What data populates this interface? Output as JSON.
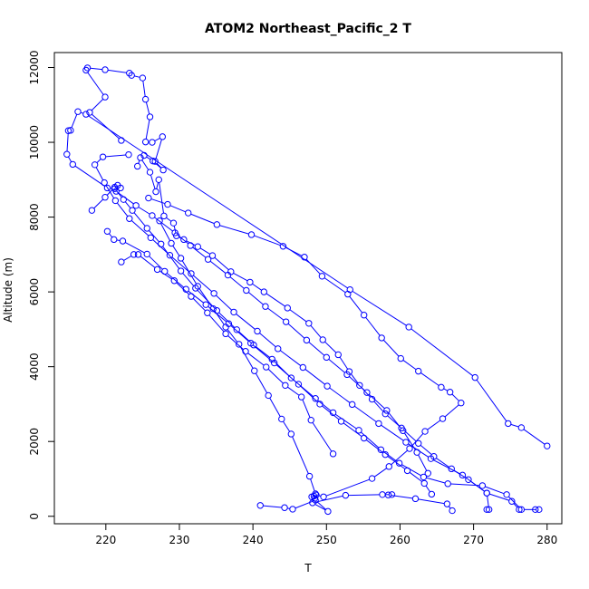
{
  "chart_data": {
    "type": "scatter",
    "title": "ATOM2 Northeast_Pacific_2 T",
    "xlabel": "T",
    "ylabel": "Altitude (m)",
    "xlim": [
      213,
      282
    ],
    "ylim": [
      -200,
      12400
    ],
    "x_ticks": [
      220,
      230,
      240,
      250,
      260,
      270,
      280
    ],
    "y_ticks": [
      0,
      2000,
      4000,
      6000,
      8000,
      10000,
      12000
    ],
    "grid": false,
    "legend": "none",
    "color": "#0000ff",
    "series": [
      {
        "points": [
          [
            280,
            1880
          ],
          [
            276.5,
            2370
          ],
          [
            274.7,
            2480
          ],
          [
            270.2,
            3710
          ],
          [
            261.2,
            5060
          ],
          [
            253.2,
            6060
          ],
          [
            217.3,
            10750
          ],
          [
            216.2,
            10820
          ],
          [
            215.2,
            10320
          ],
          [
            214.9,
            10310
          ],
          [
            214.7,
            9680
          ],
          [
            215.5,
            9410
          ],
          [
            220.2,
            8780
          ],
          [
            221.2,
            8760
          ],
          [
            222.4,
            8470
          ],
          [
            223.6,
            8180
          ],
          [
            225.6,
            7700
          ],
          [
            227.5,
            7280
          ],
          [
            230.2,
            6560
          ],
          [
            232.2,
            6100
          ],
          [
            235.1,
            5500
          ],
          [
            237.8,
            4990
          ],
          [
            240.1,
            4580
          ],
          [
            242.6,
            4200
          ],
          [
            245.2,
            3700
          ],
          [
            248.5,
            3150
          ],
          [
            250.9,
            2770
          ],
          [
            254.4,
            2300
          ],
          [
            257.4,
            1780
          ],
          [
            259.9,
            1420
          ],
          [
            263.2,
            1050
          ],
          [
            266.5,
            870
          ],
          [
            271.2,
            820
          ],
          [
            274.5,
            580
          ],
          [
            276.5,
            180
          ],
          [
            278.9,
            180
          ],
          [
            278.4,
            180
          ]
        ]
      },
      {
        "points": [
          [
            276.2,
            180
          ],
          [
            275.2,
            400
          ],
          [
            271.8,
            620
          ],
          [
            268.5,
            1100
          ],
          [
            264.2,
            1540
          ],
          [
            260.8,
            1980
          ],
          [
            257.1,
            2480
          ],
          [
            253.5,
            2990
          ],
          [
            250.1,
            3480
          ],
          [
            246.8,
            3980
          ],
          [
            243.4,
            4480
          ],
          [
            240.6,
            4950
          ],
          [
            237.4,
            5460
          ],
          [
            234.7,
            5960
          ],
          [
            231.6,
            6490
          ],
          [
            228.7,
            6980
          ],
          [
            226.1,
            7450
          ],
          [
            223.2,
            7960
          ],
          [
            221.3,
            8440
          ],
          [
            219.8,
            8920
          ],
          [
            218.5,
            9400
          ],
          [
            219.6,
            9610
          ],
          [
            223.1,
            9670
          ]
        ]
      },
      {
        "points": [
          [
            225.2,
            9650
          ],
          [
            226.4,
            9500
          ],
          [
            227.8,
            9260
          ],
          [
            226.7,
            9490
          ],
          [
            227.7,
            10150
          ],
          [
            226.3,
            10000
          ],
          [
            225.4,
            10010
          ],
          [
            226.0,
            10680
          ],
          [
            225.4,
            11150
          ],
          [
            225.0,
            11720
          ],
          [
            223.5,
            11790
          ],
          [
            223.2,
            11850
          ],
          [
            219.9,
            11940
          ],
          [
            217.5,
            11990
          ],
          [
            217.3,
            11930
          ],
          [
            219.9,
            11210
          ],
          [
            217.8,
            10800
          ],
          [
            222.1,
            10050
          ]
        ]
      },
      {
        "points": [
          [
            224.3,
            9360
          ],
          [
            224.7,
            9590
          ],
          [
            226.0,
            9200
          ],
          [
            226.8,
            8680
          ],
          [
            227.2,
            9000
          ],
          [
            227.9,
            8030
          ],
          [
            229.2,
            7840
          ],
          [
            229.6,
            7500
          ],
          [
            230.6,
            7400
          ],
          [
            232.5,
            7210
          ],
          [
            234.5,
            6970
          ],
          [
            237.0,
            6540
          ],
          [
            239.6,
            6260
          ],
          [
            241.5,
            6000
          ],
          [
            244.7,
            5570
          ],
          [
            247.6,
            5160
          ],
          [
            249.5,
            4720
          ],
          [
            251.6,
            4320
          ],
          [
            253.1,
            3870
          ],
          [
            254.5,
            3500
          ],
          [
            256.2,
            3130
          ],
          [
            258.0,
            2740
          ],
          [
            260.2,
            2360
          ],
          [
            262.5,
            1950
          ],
          [
            264.6,
            1600
          ],
          [
            267.0,
            1270
          ],
          [
            269.3,
            980
          ],
          [
            271.8,
            620
          ],
          [
            272.1,
            180
          ],
          [
            271.8,
            180
          ]
        ]
      },
      {
        "points": [
          [
            248.3,
            540
          ],
          [
            248.0,
            520
          ],
          [
            248.4,
            480
          ],
          [
            248.5,
            600
          ],
          [
            247.7,
            1070
          ],
          [
            245.2,
            2200
          ],
          [
            243.9,
            2600
          ],
          [
            242.1,
            3230
          ],
          [
            240.2,
            3890
          ],
          [
            238.1,
            4600
          ],
          [
            236.3,
            5060
          ],
          [
            234.6,
            5550
          ],
          [
            232.5,
            6150
          ],
          [
            230.2,
            6900
          ],
          [
            228.9,
            7300
          ],
          [
            227.3,
            7900
          ]
        ]
      },
      {
        "points": [
          [
            248.6,
            570
          ],
          [
            249.6,
            520
          ],
          [
            256.2,
            1010
          ],
          [
            258.5,
            1330
          ],
          [
            261.3,
            1810
          ],
          [
            263.4,
            2270
          ],
          [
            265.8,
            2610
          ],
          [
            268.3,
            3030
          ],
          [
            266.8,
            3320
          ],
          [
            265.6,
            3450
          ],
          [
            262.5,
            3880
          ],
          [
            260.1,
            4220
          ],
          [
            257.5,
            4770
          ],
          [
            255.1,
            5380
          ],
          [
            252.9,
            5940
          ],
          [
            249.4,
            6420
          ],
          [
            247.0,
            6930
          ],
          [
            244.1,
            7220
          ],
          [
            239.8,
            7530
          ],
          [
            235.1,
            7800
          ],
          [
            231.2,
            8110
          ],
          [
            228.4,
            8340
          ],
          [
            225.8,
            8510
          ]
        ]
      },
      {
        "points": [
          [
            222.1,
            6800
          ],
          [
            223.8,
            7000
          ],
          [
            224.4,
            7000
          ],
          [
            227.0,
            6600
          ],
          [
            229.3,
            6300
          ],
          [
            231.6,
            5880
          ],
          [
            233.8,
            5440
          ],
          [
            236.3,
            4880
          ],
          [
            239.0,
            4410
          ],
          [
            241.8,
            3990
          ],
          [
            244.4,
            3500
          ],
          [
            246.6,
            3190
          ],
          [
            247.9,
            2570
          ],
          [
            250.9,
            1670
          ]
        ]
      },
      {
        "points": [
          [
            220.2,
            7620
          ],
          [
            221.1,
            7400
          ],
          [
            222.3,
            7360
          ],
          [
            225.6,
            7010
          ],
          [
            228.0,
            6550
          ],
          [
            230.9,
            6070
          ],
          [
            233.6,
            5660
          ],
          [
            236.7,
            5150
          ],
          [
            239.7,
            4630
          ],
          [
            242.9,
            4100
          ],
          [
            246.2,
            3530
          ],
          [
            249.1,
            3000
          ],
          [
            252.0,
            2540
          ],
          [
            255.1,
            2090
          ],
          [
            258.0,
            1650
          ],
          [
            261.0,
            1220
          ],
          [
            263.3,
            880
          ],
          [
            264.3,
            590
          ]
        ]
      },
      {
        "points": [
          [
            241.0,
            290
          ],
          [
            244.3,
            230
          ],
          [
            245.4,
            190
          ],
          [
            248.5,
            430
          ],
          [
            250.2,
            130
          ],
          [
            248.1,
            360
          ],
          [
            252.6,
            560
          ],
          [
            257.6,
            580
          ],
          [
            258.9,
            580
          ],
          [
            258.4,
            570
          ],
          [
            262.1,
            470
          ],
          [
            266.4,
            330
          ],
          [
            267.1,
            150
          ]
        ]
      },
      {
        "points": [
          [
            218.1,
            8180
          ],
          [
            219.9,
            8530
          ],
          [
            221.2,
            8800
          ],
          [
            221.6,
            8850
          ],
          [
            222.0,
            8780
          ],
          [
            221.4,
            8690
          ],
          [
            224.1,
            8310
          ],
          [
            226.3,
            8040
          ],
          [
            229.4,
            7580
          ],
          [
            231.5,
            7240
          ],
          [
            233.9,
            6870
          ],
          [
            236.6,
            6450
          ],
          [
            239.1,
            6040
          ],
          [
            241.7,
            5610
          ],
          [
            244.5,
            5200
          ],
          [
            247.3,
            4710
          ],
          [
            250.0,
            4250
          ],
          [
            252.8,
            3790
          ],
          [
            255.5,
            3310
          ],
          [
            258.2,
            2830
          ],
          [
            260.4,
            2290
          ],
          [
            262.3,
            1710
          ],
          [
            263.8,
            1150
          ]
        ]
      }
    ]
  }
}
